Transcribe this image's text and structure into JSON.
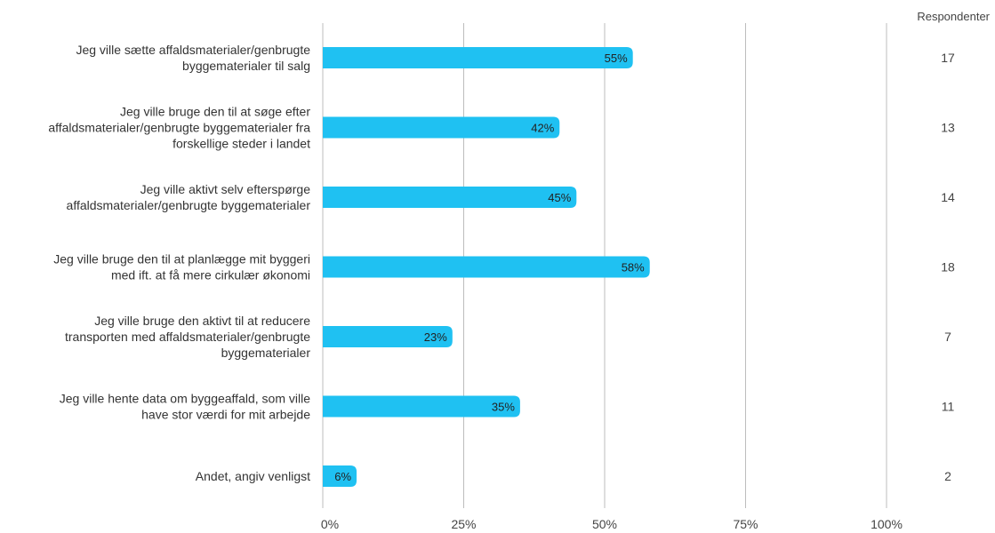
{
  "chart_data": {
    "type": "bar",
    "orientation": "horizontal",
    "categories": [
      [
        "Jeg ville sætte affaldsmaterialer/genbrugte",
        "byggematerialer til salg"
      ],
      [
        "Jeg ville bruge den til at søge efter",
        "affaldsmaterialer/genbrugte byggematerialer fra",
        "forskellige steder i landet"
      ],
      [
        "Jeg ville aktivt selv efterspørge",
        "affaldsmaterialer/genbrugte byggematerialer"
      ],
      [
        "Jeg ville bruge den til at planlægge mit byggeri",
        "med ift. at få mere cirkulær økonomi"
      ],
      [
        "Jeg ville bruge den aktivt til at reducere",
        "transporten med affaldsmaterialer/genbrugte",
        "byggematerialer"
      ],
      [
        "Jeg ville hente data om byggeaffald, som ville",
        "have stor værdi for mit arbejde"
      ],
      [
        "Andet, angiv venligst"
      ]
    ],
    "values": [
      55,
      42,
      45,
      58,
      23,
      35,
      6
    ],
    "value_labels": [
      "55%",
      "42%",
      "45%",
      "58%",
      "23%",
      "35%",
      "6%"
    ],
    "respondents": [
      "17",
      "13",
      "14",
      "18",
      "7",
      "11",
      "2"
    ],
    "respondents_header": "Respondenter",
    "xlim": [
      0,
      100
    ],
    "xticks": [
      0,
      25,
      50,
      75,
      100
    ],
    "xtick_labels": [
      "0%",
      "25%",
      "50%",
      "75%",
      "100%"
    ],
    "grid": true,
    "bar_color": "#1fc1f2",
    "grid_color": "#bdbdbd"
  }
}
